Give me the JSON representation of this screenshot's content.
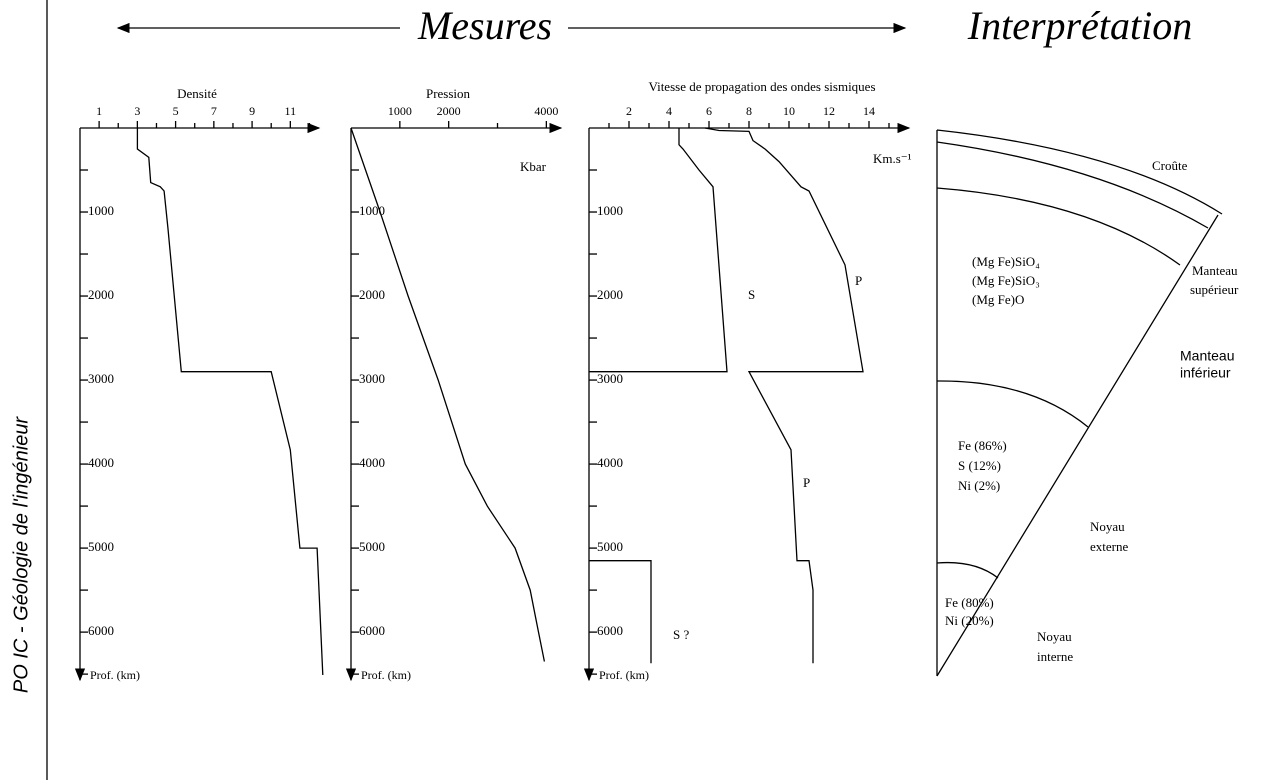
{
  "side_label": "PO IC - Géologie de l'ingénieur",
  "header": {
    "measures": "Mesures",
    "interpretation": "Interprétation"
  },
  "chart_data": [
    {
      "type": "line",
      "title": "Densité",
      "xlabel": "Prof. (km)",
      "xlim": [
        0,
        6570
      ],
      "xticks": [
        1000,
        2000,
        3000,
        4000,
        5000,
        6000
      ],
      "minor_xticks": [
        500,
        1500,
        2500,
        3500,
        4500,
        5500,
        6500
      ],
      "ylim": [
        0,
        12.5
      ],
      "yticks": [
        1,
        3,
        5,
        7,
        9,
        11
      ],
      "minor_yticks": [
        2,
        4,
        6,
        8,
        10,
        12
      ],
      "series": [
        {
          "color": "#000000",
          "x": [
            0,
            250,
            350,
            650,
            700,
            750,
            1200,
            2900,
            2900,
            3830,
            5000,
            5000,
            6510
          ],
          "values": [
            3.0,
            3.0,
            3.6,
            3.7,
            4.2,
            4.4,
            4.6,
            5.3,
            10.0,
            11.0,
            11.5,
            12.4,
            12.7
          ]
        }
      ]
    },
    {
      "type": "line",
      "title": "Pression",
      "xlabel": "Prof. (km)",
      "ylabel": "Kbar",
      "xlim": [
        0,
        6570
      ],
      "xticks": [
        1000,
        2000,
        3000,
        4000,
        5000,
        6000
      ],
      "minor_xticks": [
        500,
        1500,
        2500,
        3500,
        4500,
        5500,
        6500
      ],
      "ylim": [
        0,
        4300
      ],
      "yticks": [
        1000,
        2000,
        4000
      ],
      "minor_yticks": [
        3000
      ],
      "series": [
        {
          "color": "#000000",
          "x": [
            0,
            1000,
            2000,
            3000,
            4000,
            4500,
            5000,
            5500,
            6000,
            6350
          ],
          "values": [
            0,
            595,
            1170,
            1785,
            2340,
            2790,
            3360,
            3670,
            3840,
            3960
          ]
        }
      ]
    },
    {
      "type": "line",
      "title": "Vitesse de propagation des ondes sismiques",
      "xlabel": "Prof. (km)",
      "ylabel": "Km.s⁻¹",
      "xlim": [
        0,
        6570
      ],
      "xticks": [
        1000,
        2000,
        3000,
        4000,
        5000,
        6000
      ],
      "minor_xticks": [
        500,
        1500,
        2500,
        3500,
        4500,
        5500,
        6500
      ],
      "ylim": [
        0,
        16
      ],
      "yticks": [
        2,
        4,
        6,
        8,
        10,
        12,
        14
      ],
      "minor_yticks": [
        1,
        3,
        5,
        7,
        9,
        11,
        13,
        15
      ],
      "series": [
        {
          "name": "S",
          "color": "#000000",
          "x": [
            0,
            200,
            250,
            500,
            700,
            2900,
            2900
          ],
          "values": [
            4.5,
            4.5,
            4.7,
            5.5,
            6.2,
            6.9,
            0
          ]
        },
        {
          "name": "P",
          "color": "#000000",
          "x": [
            0,
            30,
            40,
            150,
            250,
            400,
            700,
            750,
            1630,
            2900,
            2900,
            3830,
            5150,
            5150,
            5500,
            6370
          ],
          "values": [
            5.8,
            6.5,
            8.0,
            8.2,
            8.8,
            9.5,
            10.6,
            11.0,
            12.8,
            13.7,
            8.0,
            10.1,
            10.4,
            11.0,
            11.2,
            11.2
          ]
        },
        {
          "name": "S ?",
          "color": "#000000",
          "x": [
            5150,
            5150,
            6370
          ],
          "values": [
            0,
            3.1,
            3.1
          ]
        }
      ],
      "annotations": [
        "P"
      ]
    }
  ],
  "interpretation": {
    "crust": "Croûte",
    "upper_mantle": {
      "name": [
        "Manteau",
        "supérieur"
      ],
      "composition": [
        "(Mg Fe)SiO₄",
        "(Mg Fe)SiO₃",
        "(Mg Fe)O"
      ]
    },
    "lower_mantle": {
      "name": [
        "Manteau",
        "inférieur"
      ]
    },
    "outer_core": {
      "name": [
        "Noyau",
        "externe"
      ],
      "composition": [
        "Fe  (86%)",
        "S  (12%)",
        "Ni  (2%)"
      ]
    },
    "inner_core": {
      "name": [
        "Noyau",
        "interne"
      ],
      "composition": [
        "Fe  (80%)",
        "Ni  (20%)"
      ]
    }
  }
}
